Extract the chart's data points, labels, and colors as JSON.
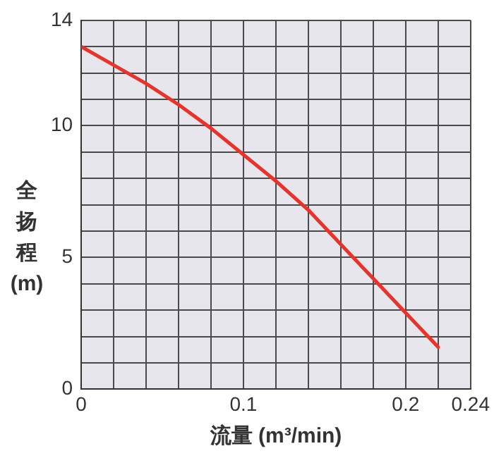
{
  "chart_data": {
    "type": "line",
    "xlabel": "流量 (m³/min)",
    "ylabel": "全扬程 (m)",
    "x": [
      0,
      0.02,
      0.04,
      0.06,
      0.08,
      0.1,
      0.12,
      0.14,
      0.16,
      0.18,
      0.2,
      0.22
    ],
    "series": [
      {
        "color": "#e8322a",
        "values": [
          13.0,
          12.3,
          11.6,
          10.8,
          9.9,
          8.9,
          7.9,
          6.8,
          5.5,
          4.2,
          2.9,
          1.6
        ]
      }
    ],
    "xlim": [
      0,
      0.24
    ],
    "xticks": [
      0,
      {
        "value": 0.02,
        "label": null
      },
      {
        "value": 0.04,
        "label": null
      },
      {
        "value": 0.06,
        "label": null
      },
      {
        "value": 0.08,
        "label": null
      },
      0.1,
      {
        "value": 0.12,
        "label": null
      },
      {
        "value": 0.14,
        "label": null
      },
      {
        "value": 0.16,
        "label": null
      },
      {
        "value": 0.18,
        "label": null
      },
      0.2,
      {
        "value": 0.22,
        "label": null
      },
      0.24
    ],
    "ylim": [
      0,
      14
    ],
    "yticks": [
      0,
      {
        "value": 1,
        "label": null
      },
      {
        "value": 2,
        "label": null
      },
      {
        "value": 3,
        "label": null
      },
      {
        "value": 4,
        "label": null
      },
      5,
      {
        "value": 6,
        "label": null
      },
      {
        "value": 7,
        "label": null
      },
      {
        "value": 8,
        "label": null
      },
      {
        "value": 9,
        "label": null
      },
      10,
      {
        "value": 11,
        "label": null
      },
      {
        "value": 12,
        "label": null
      },
      {
        "value": 13,
        "label": null
      },
      14
    ],
    "grid": true,
    "legend": false,
    "marker": "none",
    "line_style": "solid"
  }
}
